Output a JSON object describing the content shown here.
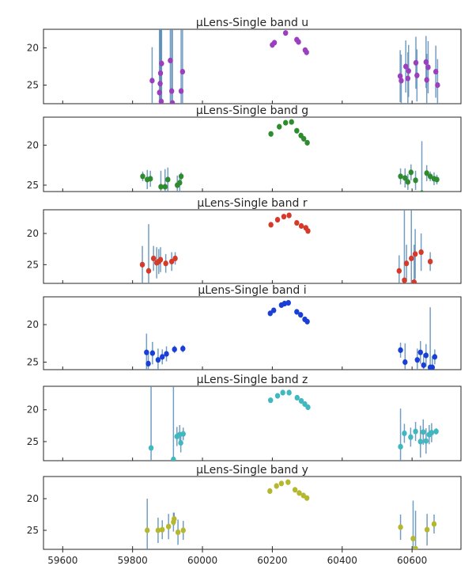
{
  "chart_data": {
    "type": "scatter",
    "x_ticks": [
      59600,
      59800,
      60000,
      60200,
      60400,
      60600
    ],
    "xlim": [
      59545,
      60740
    ],
    "errorbar_color": "#5b8db8",
    "panels": [
      {
        "title": "µLens-Single band u",
        "color": "#9b3fbf",
        "ylim": [
          27.5,
          17.5
        ],
        "y_ticks": [
          20,
          25
        ],
        "points": [
          {
            "x": 59856,
            "y": 24.4,
            "err": 4.5
          },
          {
            "x": 59877,
            "y": 26.0,
            "err": 10
          },
          {
            "x": 59879,
            "y": 24.8,
            "err": 10
          },
          {
            "x": 59880,
            "y": 23.4,
            "err": 10
          },
          {
            "x": 59882,
            "y": 27.2,
            "err": 10
          },
          {
            "x": 59883,
            "y": 22.1,
            "err": 10
          },
          {
            "x": 59908,
            "y": 21.7,
            "err": 10
          },
          {
            "x": 59912,
            "y": 25.8,
            "err": 10
          },
          {
            "x": 59914,
            "y": 27.4,
            "err": 10
          },
          {
            "x": 59939,
            "y": 25.8,
            "err": 10
          },
          {
            "x": 59943,
            "y": 23.2,
            "err": 10
          },
          {
            "x": 60200,
            "y": 19.6,
            "err": 0.3
          },
          {
            "x": 60206,
            "y": 19.3,
            "err": 0.3
          },
          {
            "x": 60238,
            "y": 18.0,
            "err": 0.3
          },
          {
            "x": 60270,
            "y": 18.9,
            "err": 0.3
          },
          {
            "x": 60275,
            "y": 19.2,
            "err": 0.3
          },
          {
            "x": 60294,
            "y": 20.3,
            "err": 0.3
          },
          {
            "x": 60298,
            "y": 20.6,
            "err": 0.3
          },
          {
            "x": 60566,
            "y": 23.8,
            "err": 3.5
          },
          {
            "x": 60569,
            "y": 24.4,
            "err": 3.5
          },
          {
            "x": 60582,
            "y": 22.5,
            "err": 3.5
          },
          {
            "x": 60588,
            "y": 24.1,
            "err": 3.5
          },
          {
            "x": 60590,
            "y": 23.1,
            "err": 3.5
          },
          {
            "x": 60611,
            "y": 22.0,
            "err": 3.5
          },
          {
            "x": 60614,
            "y": 23.7,
            "err": 3.5
          },
          {
            "x": 60640,
            "y": 21.9,
            "err": 3.5
          },
          {
            "x": 60642,
            "y": 24.3,
            "err": 3.5
          },
          {
            "x": 60646,
            "y": 22.6,
            "err": 3.5
          },
          {
            "x": 60668,
            "y": 23.2,
            "err": 3.5
          },
          {
            "x": 60673,
            "y": 25.0,
            "err": 3.5
          }
        ]
      },
      {
        "title": "µLens-Single band g",
        "color": "#2e8b2e",
        "ylim": [
          25.8,
          16.5
        ],
        "y_ticks": [
          20,
          25
        ],
        "points": [
          {
            "x": 59829,
            "y": 23.9,
            "err": 0.6
          },
          {
            "x": 59842,
            "y": 24.3,
            "err": 1.2
          },
          {
            "x": 59851,
            "y": 24.2,
            "err": 1.0
          },
          {
            "x": 59881,
            "y": 25.2,
            "err": 2.0
          },
          {
            "x": 59893,
            "y": 25.2,
            "err": 2.2
          },
          {
            "x": 59901,
            "y": 24.3,
            "err": 1.5
          },
          {
            "x": 59928,
            "y": 25.0,
            "err": 1.2
          },
          {
            "x": 59935,
            "y": 24.7,
            "err": 1.0
          },
          {
            "x": 59939,
            "y": 23.9,
            "err": 0.5
          },
          {
            "x": 60196,
            "y": 18.6,
            "err": 0.2
          },
          {
            "x": 60220,
            "y": 17.7,
            "err": 0.2
          },
          {
            "x": 60238,
            "y": 17.2,
            "err": 0.2
          },
          {
            "x": 60255,
            "y": 17.1,
            "err": 0.2
          },
          {
            "x": 60270,
            "y": 18.2,
            "err": 0.2
          },
          {
            "x": 60282,
            "y": 18.8,
            "err": 0.2
          },
          {
            "x": 60290,
            "y": 19.2,
            "err": 0.2
          },
          {
            "x": 60300,
            "y": 19.7,
            "err": 0.2
          },
          {
            "x": 60567,
            "y": 23.9,
            "err": 1.0
          },
          {
            "x": 60580,
            "y": 24.1,
            "err": 1.2
          },
          {
            "x": 60588,
            "y": 24.6,
            "err": 1.0
          },
          {
            "x": 60597,
            "y": 23.4,
            "err": 1.0
          },
          {
            "x": 60610,
            "y": 24.4,
            "err": 1.2
          },
          {
            "x": 60628,
            "y": 26.0,
            "err": 6.5
          },
          {
            "x": 60642,
            "y": 23.5,
            "err": 1.0
          },
          {
            "x": 60652,
            "y": 23.9,
            "err": 0.6
          },
          {
            "x": 60663,
            "y": 24.2,
            "err": 0.8
          },
          {
            "x": 60671,
            "y": 24.3,
            "err": 0.6
          }
        ]
      },
      {
        "title": "µLens-Single band r",
        "color": "#d63a2a",
        "ylim": [
          28.0,
          16.2
        ],
        "y_ticks": [
          20,
          25
        ],
        "points": [
          {
            "x": 59828,
            "y": 25.0,
            "err": 3.0
          },
          {
            "x": 59846,
            "y": 26.0,
            "err": 7.5
          },
          {
            "x": 59860,
            "y": 24.0,
            "err": 2.0
          },
          {
            "x": 59869,
            "y": 24.7,
            "err": 2.5
          },
          {
            "x": 59875,
            "y": 24.5,
            "err": 2.0
          },
          {
            "x": 59880,
            "y": 24.2,
            "err": 2.0
          },
          {
            "x": 59895,
            "y": 24.8,
            "err": 1.5
          },
          {
            "x": 59912,
            "y": 24.5,
            "err": 1.5
          },
          {
            "x": 59922,
            "y": 24.0,
            "err": 1.0
          },
          {
            "x": 60196,
            "y": 18.6,
            "err": 0.2
          },
          {
            "x": 60215,
            "y": 17.8,
            "err": 0.2
          },
          {
            "x": 60233,
            "y": 17.3,
            "err": 0.2
          },
          {
            "x": 60248,
            "y": 17.1,
            "err": 0.2
          },
          {
            "x": 60270,
            "y": 18.3,
            "err": 0.2
          },
          {
            "x": 60283,
            "y": 18.8,
            "err": 0.2
          },
          {
            "x": 60296,
            "y": 19.1,
            "err": 0.2
          },
          {
            "x": 60302,
            "y": 19.6,
            "err": 0.2
          },
          {
            "x": 60563,
            "y": 26.0,
            "err": 2.5
          },
          {
            "x": 60578,
            "y": 27.5,
            "err": 12
          },
          {
            "x": 60584,
            "y": 24.8,
            "err": 3.0
          },
          {
            "x": 60598,
            "y": 24.0,
            "err": 8.0
          },
          {
            "x": 60606,
            "y": 27.8,
            "err": 6.0
          },
          {
            "x": 60609,
            "y": 23.3,
            "err": 4.0
          },
          {
            "x": 60626,
            "y": 23.0,
            "err": 3.0
          },
          {
            "x": 60652,
            "y": 24.5,
            "err": 1.5
          }
        ]
      },
      {
        "title": "µLens-Single band i",
        "color": "#1a3fd6",
        "ylim": [
          26.0,
          16.3
        ],
        "y_ticks": [
          20,
          25
        ],
        "points": [
          {
            "x": 59840,
            "y": 23.7,
            "err": 2.5
          },
          {
            "x": 59845,
            "y": 25.2,
            "err": 1.5
          },
          {
            "x": 59857,
            "y": 23.8,
            "err": 1.5
          },
          {
            "x": 59873,
            "y": 24.7,
            "err": 1.5
          },
          {
            "x": 59885,
            "y": 24.3,
            "err": 1.0
          },
          {
            "x": 59897,
            "y": 23.9,
            "err": 1.0
          },
          {
            "x": 59920,
            "y": 23.3,
            "err": 0.5
          },
          {
            "x": 59944,
            "y": 23.2,
            "err": 0.5
          },
          {
            "x": 60194,
            "y": 18.5,
            "err": 0.2
          },
          {
            "x": 60204,
            "y": 18.1,
            "err": 0.2
          },
          {
            "x": 60226,
            "y": 17.4,
            "err": 0.2
          },
          {
            "x": 60235,
            "y": 17.2,
            "err": 0.2
          },
          {
            "x": 60246,
            "y": 17.1,
            "err": 0.2
          },
          {
            "x": 60270,
            "y": 18.3,
            "err": 0.2
          },
          {
            "x": 60281,
            "y": 18.7,
            "err": 0.2
          },
          {
            "x": 60293,
            "y": 19.3,
            "err": 0.2
          },
          {
            "x": 60300,
            "y": 19.6,
            "err": 0.2
          },
          {
            "x": 60567,
            "y": 23.4,
            "err": 1.0
          },
          {
            "x": 60580,
            "y": 25.0,
            "err": 2.5
          },
          {
            "x": 60615,
            "y": 24.7,
            "err": 1.5
          },
          {
            "x": 60624,
            "y": 23.7,
            "err": 1.5
          },
          {
            "x": 60633,
            "y": 25.4,
            "err": 1.5
          },
          {
            "x": 60640,
            "y": 24.1,
            "err": 1.5
          },
          {
            "x": 60652,
            "y": 25.7,
            "err": 8.0
          },
          {
            "x": 60658,
            "y": 25.7,
            "err": 1.5
          },
          {
            "x": 60665,
            "y": 24.3,
            "err": 1.0
          }
        ]
      },
      {
        "title": "µLens-Single band z",
        "color": "#3fb8bf",
        "ylim": [
          28.0,
          16.3
        ],
        "y_ticks": [
          20,
          25
        ],
        "points": [
          {
            "x": 59853,
            "y": 26.0,
            "err": 12
          },
          {
            "x": 59917,
            "y": 27.8,
            "err": 12
          },
          {
            "x": 59927,
            "y": 24.2,
            "err": 1.5
          },
          {
            "x": 59935,
            "y": 23.9,
            "err": 1.5
          },
          {
            "x": 59938,
            "y": 25.2,
            "err": 1.5
          },
          {
            "x": 59945,
            "y": 23.8,
            "err": 1.0
          },
          {
            "x": 60195,
            "y": 18.5,
            "err": 0.2
          },
          {
            "x": 60215,
            "y": 17.8,
            "err": 0.2
          },
          {
            "x": 60230,
            "y": 17.3,
            "err": 0.2
          },
          {
            "x": 60248,
            "y": 17.3,
            "err": 0.2
          },
          {
            "x": 60271,
            "y": 18.1,
            "err": 0.2
          },
          {
            "x": 60283,
            "y": 18.6,
            "err": 0.2
          },
          {
            "x": 60293,
            "y": 19.1,
            "err": 0.2
          },
          {
            "x": 60302,
            "y": 19.6,
            "err": 0.2
          },
          {
            "x": 60567,
            "y": 25.8,
            "err": 6.0
          },
          {
            "x": 60578,
            "y": 23.7,
            "err": 1.5
          },
          {
            "x": 60596,
            "y": 24.3,
            "err": 1.5
          },
          {
            "x": 60610,
            "y": 23.4,
            "err": 1.5
          },
          {
            "x": 60624,
            "y": 25.0,
            "err": 2.5
          },
          {
            "x": 60632,
            "y": 23.5,
            "err": 2.0
          },
          {
            "x": 60640,
            "y": 24.9,
            "err": 2.0
          },
          {
            "x": 60649,
            "y": 23.9,
            "err": 1.5
          },
          {
            "x": 60656,
            "y": 23.6,
            "err": 1.5
          },
          {
            "x": 60669,
            "y": 23.4,
            "err": 0.5
          }
        ]
      },
      {
        "title": "µLens-Single band y",
        "color": "#b5b82e",
        "ylim": [
          28.0,
          16.5
        ],
        "y_ticks": [
          20,
          25
        ],
        "points": [
          {
            "x": 59842,
            "y": 25.0,
            "err": 5.0
          },
          {
            "x": 59873,
            "y": 25.0,
            "err": 2.0
          },
          {
            "x": 59885,
            "y": 24.9,
            "err": 1.5
          },
          {
            "x": 59903,
            "y": 24.4,
            "err": 2.0
          },
          {
            "x": 59917,
            "y": 23.7,
            "err": 1.5
          },
          {
            "x": 59919,
            "y": 23.2,
            "err": 1.0
          },
          {
            "x": 59930,
            "y": 25.3,
            "err": 2.0
          },
          {
            "x": 59945,
            "y": 25.0,
            "err": 1.5
          },
          {
            "x": 60193,
            "y": 18.8,
            "err": 0.2
          },
          {
            "x": 60212,
            "y": 18.0,
            "err": 0.2
          },
          {
            "x": 60226,
            "y": 17.6,
            "err": 0.2
          },
          {
            "x": 60245,
            "y": 17.4,
            "err": 0.2
          },
          {
            "x": 60265,
            "y": 18.6,
            "err": 0.2
          },
          {
            "x": 60277,
            "y": 19.1,
            "err": 0.2
          },
          {
            "x": 60289,
            "y": 19.5,
            "err": 0.2
          },
          {
            "x": 60299,
            "y": 19.9,
            "err": 0.2
          },
          {
            "x": 60567,
            "y": 24.5,
            "err": 2.0
          },
          {
            "x": 60603,
            "y": 26.3,
            "err": 6.0
          },
          {
            "x": 60610,
            "y": 27.9,
            "err": 6.0
          },
          {
            "x": 60643,
            "y": 24.9,
            "err": 2.5
          },
          {
            "x": 60663,
            "y": 24.0,
            "err": 1.5
          }
        ]
      }
    ]
  }
}
